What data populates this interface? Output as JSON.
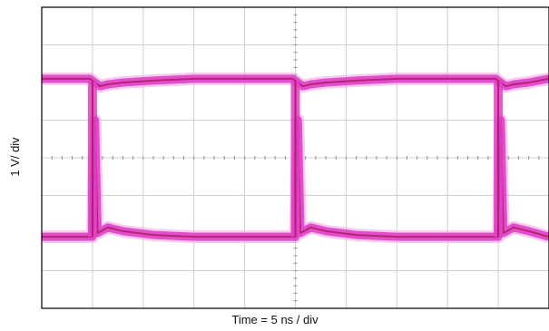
{
  "chart_data": {
    "type": "line",
    "title": "",
    "xlabel": "Time = 5 ns / div",
    "ylabel": "1 V/ div",
    "grid": true,
    "x_divisions": 10,
    "y_divisions": 8,
    "xlim_div": [
      0,
      10
    ],
    "ylim_div": [
      -4,
      4
    ],
    "series": [
      {
        "x": [
          0.0,
          0.95,
          1.0,
          1.15,
          1.3,
          1.6,
          2.2,
          3.0,
          4.0,
          4.95,
          5.0,
          5.15,
          5.3,
          5.6,
          6.2,
          7.0,
          8.0,
          8.95,
          9.0,
          9.15,
          9.3,
          9.6,
          10.0
        ],
        "y": [
          2.1,
          2.1,
          2.05,
          1.9,
          1.95,
          2.0,
          2.05,
          2.1,
          2.1,
          2.1,
          2.05,
          1.9,
          1.95,
          2.0,
          2.05,
          2.1,
          2.1,
          2.1,
          2.05,
          1.9,
          1.95,
          2.0,
          2.1
        ]
      },
      {
        "x": [
          0.0,
          0.95,
          1.0,
          1.05,
          1.1,
          1.3,
          1.6,
          2.2,
          3.0,
          4.0,
          4.95,
          5.0,
          5.05,
          5.1,
          5.3,
          5.6,
          6.2,
          7.0,
          8.0,
          8.95,
          9.0,
          9.05,
          9.1,
          9.3,
          9.6,
          10.0
        ],
        "y": [
          -2.1,
          -2.1,
          -2.1,
          1.0,
          -2.0,
          -1.85,
          -1.95,
          -2.05,
          -2.1,
          -2.1,
          -2.1,
          -2.1,
          1.0,
          -2.0,
          -1.85,
          -1.95,
          -2.05,
          -2.1,
          -2.1,
          -2.1,
          -2.1,
          1.0,
          -2.0,
          -1.85,
          -1.95,
          -2.1
        ]
      }
    ],
    "trace_color": "#e040c8",
    "trace_core_color": "#b0206e",
    "trace_highlight_color": "#f0a0e0",
    "grid_color": "#d0d0d0",
    "frame_color": "#000000"
  }
}
